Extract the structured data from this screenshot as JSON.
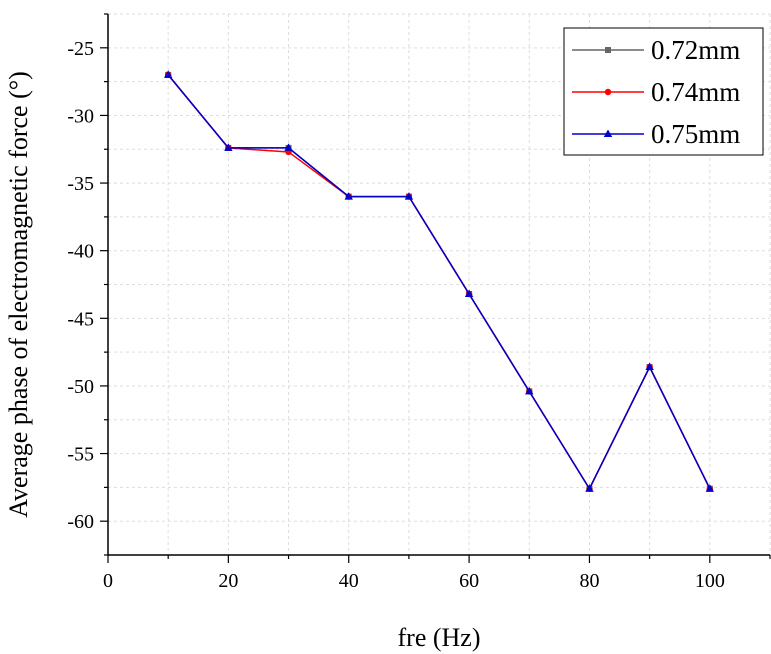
{
  "chart_data": {
    "type": "line",
    "xlabel": "fre (Hz)",
    "ylabel": "Average phase of electromagnetic force (°)",
    "xlim": [
      0,
      110
    ],
    "ylim": [
      -62.5,
      -22.5
    ],
    "x_ticks": [
      0,
      20,
      40,
      60,
      80,
      100
    ],
    "y_ticks": [
      -25,
      -30,
      -35,
      -40,
      -45,
      -50,
      -55,
      -60
    ],
    "x": [
      10,
      20,
      30,
      40,
      50,
      60,
      70,
      80,
      90,
      100
    ],
    "grid": true,
    "legend_position": "top-right",
    "series": [
      {
        "name": "0.72mm",
        "color": "#666666",
        "marker": "square",
        "values": [
          -27.0,
          -32.4,
          -32.4,
          -36.0,
          -36.0,
          -43.2,
          -50.4,
          -57.6,
          -48.6,
          -57.6
        ]
      },
      {
        "name": "0.74mm",
        "color": "#ff0000",
        "marker": "circle",
        "values": [
          -27.0,
          -32.4,
          -32.7,
          -36.0,
          -36.0,
          -43.2,
          -50.4,
          -57.6,
          -48.6,
          -57.6
        ]
      },
      {
        "name": "0.75mm",
        "color": "#0000cc",
        "marker": "triangle",
        "values": [
          -27.0,
          -32.4,
          -32.4,
          -36.0,
          -36.0,
          -43.2,
          -50.4,
          -57.6,
          -48.6,
          -57.6
        ]
      }
    ]
  }
}
